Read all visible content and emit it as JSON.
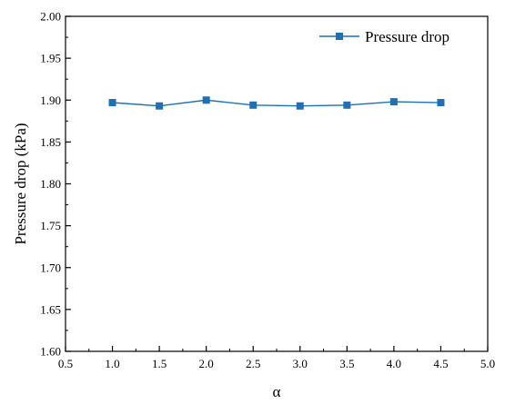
{
  "chart_data": {
    "type": "line",
    "title": "",
    "xlabel": "α",
    "ylabel": "Pressure drop (kPa)",
    "xlim": [
      0.5,
      5.0
    ],
    "ylim": [
      1.6,
      2.0
    ],
    "x_ticks": [
      "0.5",
      "1.0",
      "1.5",
      "2.0",
      "2.5",
      "3.0",
      "3.5",
      "4.0",
      "4.5",
      "5.0"
    ],
    "y_ticks": [
      "1.60",
      "1.65",
      "1.70",
      "1.75",
      "1.80",
      "1.85",
      "1.90",
      "1.95",
      "2.00"
    ],
    "grid": false,
    "legend_position": "top-right",
    "series": [
      {
        "name": "Pressure drop",
        "color": "#1f6fb2",
        "marker": "square",
        "x": [
          1.0,
          1.5,
          2.0,
          2.5,
          3.0,
          3.5,
          4.0,
          4.5
        ],
        "y": [
          1.897,
          1.893,
          1.9,
          1.894,
          1.893,
          1.894,
          1.898,
          1.897
        ]
      }
    ]
  }
}
